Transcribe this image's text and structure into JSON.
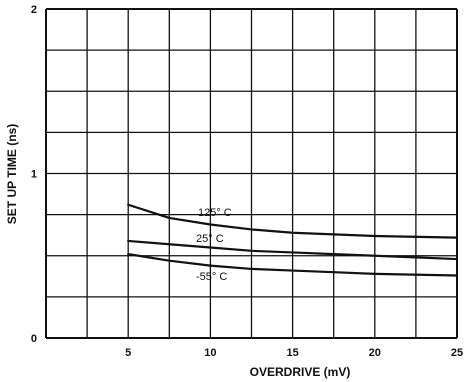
{
  "chart_data": {
    "type": "line",
    "title": "",
    "xlabel": "OVERDRIVE (mV)",
    "ylabel": "SET UP TIME (ns)",
    "xlim": [
      0,
      25
    ],
    "ylim": [
      0,
      2
    ],
    "x_ticks": [
      5,
      10,
      15,
      20,
      25
    ],
    "y_ticks": [
      0,
      1,
      2
    ],
    "grid": true,
    "series": [
      {
        "name": "125° C",
        "x": [
          5,
          7.5,
          10,
          12.5,
          15,
          17.5,
          20,
          25
        ],
        "values": [
          0.81,
          0.73,
          0.69,
          0.66,
          0.64,
          0.63,
          0.62,
          0.61
        ]
      },
      {
        "name": "25° C",
        "x": [
          5,
          7.5,
          10,
          12.5,
          15,
          17.5,
          20,
          25
        ],
        "values": [
          0.59,
          0.57,
          0.55,
          0.53,
          0.52,
          0.51,
          0.5,
          0.48
        ]
      },
      {
        "name": "-55° C",
        "x": [
          5,
          7.5,
          10,
          12.5,
          15,
          17.5,
          20,
          25
        ],
        "values": [
          0.51,
          0.47,
          0.44,
          0.42,
          0.41,
          0.4,
          0.39,
          0.38
        ]
      }
    ]
  }
}
